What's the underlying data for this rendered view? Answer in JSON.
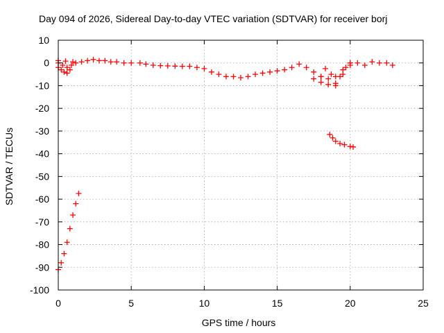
{
  "chart_data": {
    "type": "scatter",
    "title": "Day 094 of 2026, Sidereal Day-to-day VTEC variation (SDTVAR) for receiver borj",
    "xlabel": "GPS time / hours",
    "ylabel": "SDTVAR / TECUs",
    "xlim": [
      0,
      25
    ],
    "ylim": [
      -100,
      10
    ],
    "xticks": [
      0,
      5,
      10,
      15,
      20,
      25
    ],
    "yticks": [
      10,
      0,
      -10,
      -20,
      -30,
      -40,
      -50,
      -60,
      -70,
      -80,
      -90,
      -100
    ],
    "grid": true,
    "marker": "plus",
    "color": "#ff0000",
    "series": [
      {
        "values": [
          [
            0.0,
            0.0
          ],
          [
            0.3,
            -1.0
          ],
          [
            0.6,
            -2.0
          ],
          [
            0.9,
            -1.0
          ],
          [
            1.2,
            0.0
          ],
          [
            1.6,
            0.5
          ],
          [
            2.0,
            1.0
          ],
          [
            2.4,
            1.5
          ],
          [
            2.8,
            1.0
          ],
          [
            3.2,
            1.0
          ],
          [
            3.6,
            0.5
          ],
          [
            4.0,
            0.5
          ],
          [
            4.5,
            0.0
          ],
          [
            5.0,
            0.0
          ],
          [
            5.6,
            0.0
          ],
          [
            6.0,
            -0.5
          ],
          [
            6.5,
            -1.0
          ],
          [
            7.0,
            -1.2
          ],
          [
            7.5,
            -1.3
          ],
          [
            8.0,
            -1.4
          ],
          [
            8.5,
            -1.5
          ],
          [
            9.0,
            -1.5
          ],
          [
            9.5,
            -2.0
          ],
          [
            10.0,
            -2.5
          ],
          [
            10.5,
            -4.0
          ],
          [
            11.0,
            -5.0
          ],
          [
            11.5,
            -6.0
          ],
          [
            12.0,
            -6.0
          ],
          [
            12.5,
            -6.5
          ],
          [
            13.0,
            -6.0
          ],
          [
            13.5,
            -5.0
          ],
          [
            14.0,
            -4.5
          ],
          [
            14.5,
            -4.0
          ],
          [
            15.0,
            -3.5
          ],
          [
            15.5,
            -3.0
          ],
          [
            16.0,
            -2.0
          ],
          [
            16.5,
            -0.5
          ],
          [
            17.0,
            -2.0
          ],
          [
            17.5,
            -4.0
          ],
          [
            18.0,
            -6.0
          ],
          [
            18.0,
            -6.0
          ],
          [
            18.5,
            -7.0
          ],
          [
            19.0,
            -6.0
          ],
          [
            19.5,
            -3.0
          ],
          [
            20.0,
            0.0
          ],
          [
            18.3,
            -2.5
          ],
          [
            18.7,
            -5.0
          ],
          [
            19.0,
            -9.0
          ],
          [
            19.3,
            -6.0
          ],
          [
            19.7,
            -2.0
          ],
          [
            17.5,
            -7.0
          ],
          [
            18.0,
            -8.5
          ],
          [
            18.5,
            -9.5
          ],
          [
            19.0,
            -10.0
          ],
          [
            19.5,
            -5.0
          ],
          [
            20.0,
            -1.0
          ],
          [
            20.0,
            0.0
          ],
          [
            20.5,
            0.0
          ],
          [
            21.0,
            -1.0
          ],
          [
            21.5,
            0.5
          ],
          [
            22.0,
            0.0
          ],
          [
            22.5,
            0.0
          ],
          [
            22.9,
            -1.0
          ],
          [
            0.0,
            -2.0
          ],
          [
            0.2,
            -3.0
          ],
          [
            0.4,
            -4.0
          ],
          [
            0.6,
            -4.5
          ],
          [
            0.8,
            -3.0
          ],
          [
            0.0,
            1.0
          ],
          [
            0.5,
            0.8
          ],
          [
            1.0,
            0.5
          ],
          [
            18.6,
            -31.5
          ],
          [
            18.8,
            -33.0
          ],
          [
            19.0,
            -34.5
          ],
          [
            19.3,
            -35.5
          ],
          [
            19.6,
            -36.0
          ],
          [
            20.0,
            -36.8
          ],
          [
            20.2,
            -37.0
          ],
          [
            0.0,
            -91.0
          ],
          [
            0.2,
            -88.0
          ],
          [
            0.4,
            -84.0
          ],
          [
            0.6,
            -79.0
          ],
          [
            0.8,
            -73.0
          ],
          [
            1.0,
            -67.0
          ],
          [
            1.2,
            -62.0
          ],
          [
            1.4,
            -57.5
          ]
        ]
      }
    ]
  }
}
